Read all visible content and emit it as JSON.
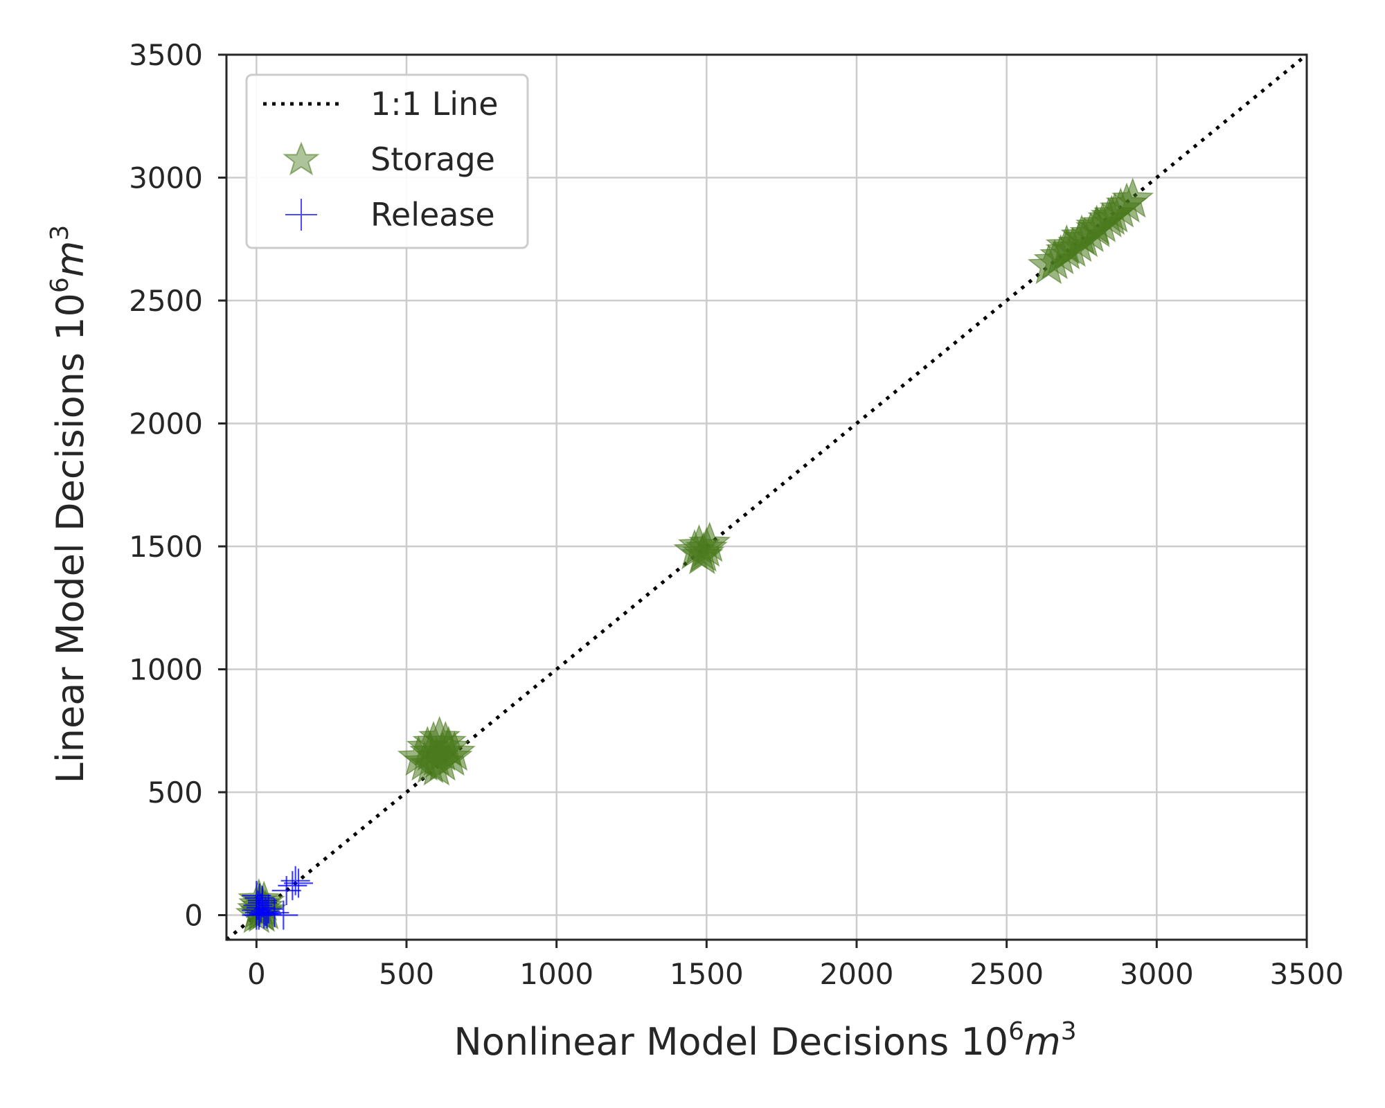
{
  "chart_data": {
    "type": "scatter",
    "title": "",
    "xlabel": "Nonlinear Model Decisions 10⁶m³",
    "ylabel": "Linear Model Decisions 10⁶m³",
    "xlabel_parts": {
      "text": "Nonlinear Model Decisions ",
      "base": "10",
      "sup1": "6",
      "unit": "m",
      "sup2": "3"
    },
    "ylabel_parts": {
      "text": "Linear Model Decisions ",
      "base": "10",
      "sup1": "6",
      "unit": "m",
      "sup2": "3"
    },
    "xlim": [
      -100,
      3500
    ],
    "ylim": [
      -100,
      3500
    ],
    "xticks": [
      0,
      500,
      1000,
      1500,
      2000,
      2500,
      3000,
      3500
    ],
    "yticks": [
      0,
      500,
      1000,
      1500,
      2000,
      2500,
      3000,
      3500
    ],
    "xtick_labels": [
      "0",
      "500",
      "1000",
      "1500",
      "2000",
      "2500",
      "3000",
      "3500"
    ],
    "ytick_labels": [
      "0",
      "500",
      "1000",
      "1500",
      "2000",
      "2500",
      "3000",
      "3500"
    ],
    "grid": true,
    "legend_position": "top-left",
    "series": [
      {
        "name": "1:1 Line",
        "kind": "line",
        "style": "dotted",
        "color": "#000000",
        "x": [
          -100,
          3500
        ],
        "y": [
          -100,
          3500
        ]
      },
      {
        "name": "Storage",
        "kind": "scatter",
        "marker": "star",
        "color": "#4a7a1e",
        "x": [
          0,
          5,
          10,
          15,
          20,
          25,
          30,
          8,
          18,
          540,
          560,
          570,
          580,
          590,
          600,
          610,
          620,
          630,
          640,
          650,
          660,
          600,
          620,
          580,
          1460,
          1475,
          1490,
          1500,
          1510,
          1485,
          2640,
          2660,
          2680,
          2700,
          2720,
          2740,
          2760,
          2780,
          2800,
          2820,
          2840,
          2860,
          2880,
          2900,
          2920,
          2700,
          2750,
          2800,
          2850
        ],
        "y": [
          0,
          20,
          40,
          10,
          30,
          50,
          15,
          60,
          5,
          640,
          620,
          680,
          660,
          700,
          640,
          720,
          660,
          700,
          680,
          640,
          660,
          600,
          620,
          610,
          1480,
          1500,
          1470,
          1490,
          1510,
          1460,
          2640,
          2660,
          2680,
          2700,
          2710,
          2730,
          2750,
          2770,
          2790,
          2810,
          2830,
          2850,
          2870,
          2890,
          2910,
          2720,
          2760,
          2800,
          2840
        ]
      },
      {
        "name": "Release",
        "kind": "scatter",
        "marker": "plus",
        "color": "#0000ff",
        "x": [
          0,
          0,
          5,
          10,
          15,
          20,
          25,
          30,
          0,
          8,
          40,
          60,
          90,
          100,
          120,
          130,
          140,
          20,
          10,
          35
        ],
        "y": [
          0,
          20,
          40,
          10,
          30,
          60,
          5,
          15,
          80,
          0,
          25,
          10,
          0,
          100,
          120,
          140,
          130,
          50,
          70,
          5
        ]
      }
    ]
  }
}
